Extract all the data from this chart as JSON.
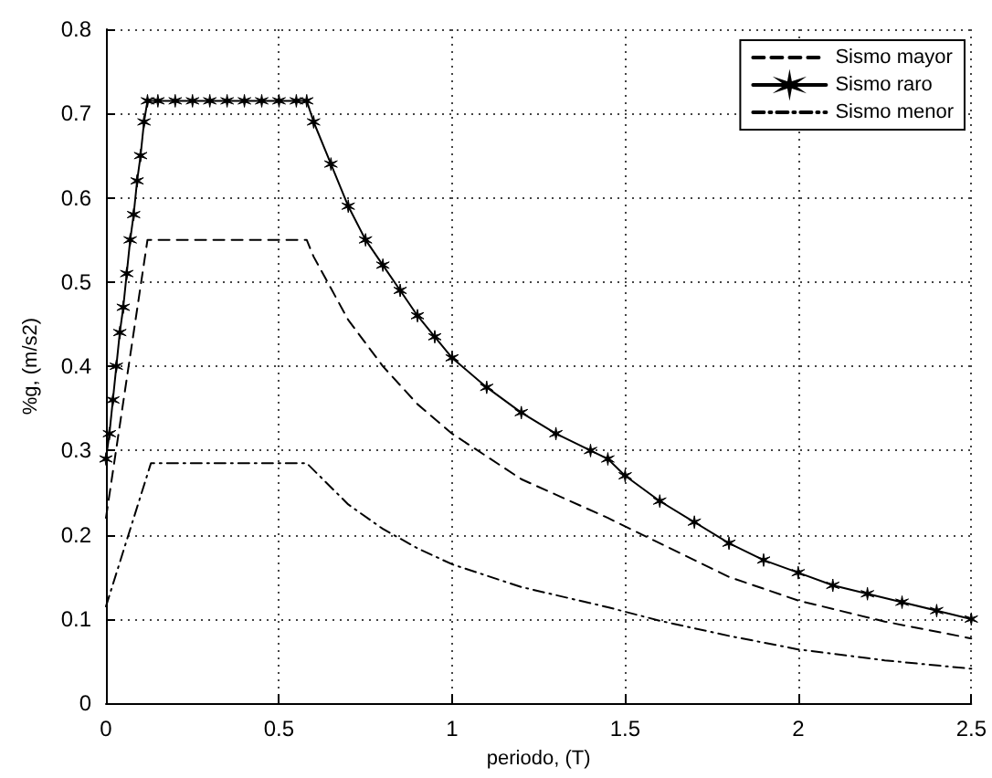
{
  "chart_data": {
    "type": "line",
    "xlabel": "periodo, (T)",
    "ylabel": "%g, (m/s2)",
    "xlim": [
      0,
      2.5
    ],
    "xticks": [
      0,
      0.5,
      1,
      1.5,
      2,
      2.5
    ],
    "ylim": [
      0,
      0.8
    ],
    "yticks": [
      0,
      0.1,
      0.2,
      0.3,
      0.4,
      0.5,
      0.6,
      0.7,
      0.8
    ],
    "grid": true,
    "legend": "top right",
    "series": [
      {
        "name": "Sismo mayor",
        "color": "#000000",
        "line_style": "dashed",
        "marker": "none",
        "x": [
          0,
          0.12,
          0.58,
          0.6,
          0.7,
          0.8,
          0.9,
          1,
          1.2,
          1.45,
          1.6,
          1.8,
          2,
          2.25,
          2.5
        ],
        "values": [
          0.22,
          0.55,
          0.55,
          0.53,
          0.455,
          0.4,
          0.355,
          0.32,
          0.266,
          0.22,
          0.19,
          0.15,
          0.122,
          0.097,
          0.077
        ]
      },
      {
        "name": "Sismo raro",
        "color": "#000000",
        "line_style": "solid",
        "marker": "cross",
        "x": [
          0,
          0.01,
          0.02,
          0.03,
          0.04,
          0.05,
          0.06,
          0.07,
          0.08,
          0.09,
          0.1,
          0.11,
          0.12,
          0.15,
          0.2,
          0.25,
          0.3,
          0.35,
          0.4,
          0.45,
          0.5,
          0.55,
          0.58,
          0.6,
          0.65,
          0.7,
          0.75,
          0.8,
          0.85,
          0.9,
          0.95,
          1,
          1.1,
          1.2,
          1.3,
          1.4,
          1.45,
          1.5,
          1.6,
          1.7,
          1.8,
          1.9,
          2,
          2.1,
          2.2,
          2.3,
          2.4,
          2.5
        ],
        "values": [
          0.29,
          0.32,
          0.36,
          0.4,
          0.44,
          0.47,
          0.51,
          0.55,
          0.58,
          0.62,
          0.65,
          0.69,
          0.715,
          0.715,
          0.715,
          0.715,
          0.715,
          0.715,
          0.715,
          0.715,
          0.715,
          0.715,
          0.715,
          0.69,
          0.64,
          0.59,
          0.55,
          0.52,
          0.49,
          0.46,
          0.435,
          0.41,
          0.375,
          0.345,
          0.32,
          0.3,
          0.29,
          0.27,
          0.24,
          0.215,
          0.19,
          0.17,
          0.155,
          0.14,
          0.13,
          0.12,
          0.11,
          0.1
        ]
      },
      {
        "name": "Sismo menor",
        "color": "#000000",
        "line_style": "dashdot",
        "marker": "none",
        "x": [
          0,
          0.13,
          0.58,
          0.7,
          0.8,
          0.9,
          1,
          1.2,
          1.45,
          1.6,
          1.8,
          2,
          2.25,
          2.5
        ],
        "values": [
          0.115,
          0.285,
          0.285,
          0.236,
          0.207,
          0.184,
          0.165,
          0.138,
          0.114,
          0.098,
          0.08,
          0.064,
          0.051,
          0.041
        ]
      }
    ]
  }
}
